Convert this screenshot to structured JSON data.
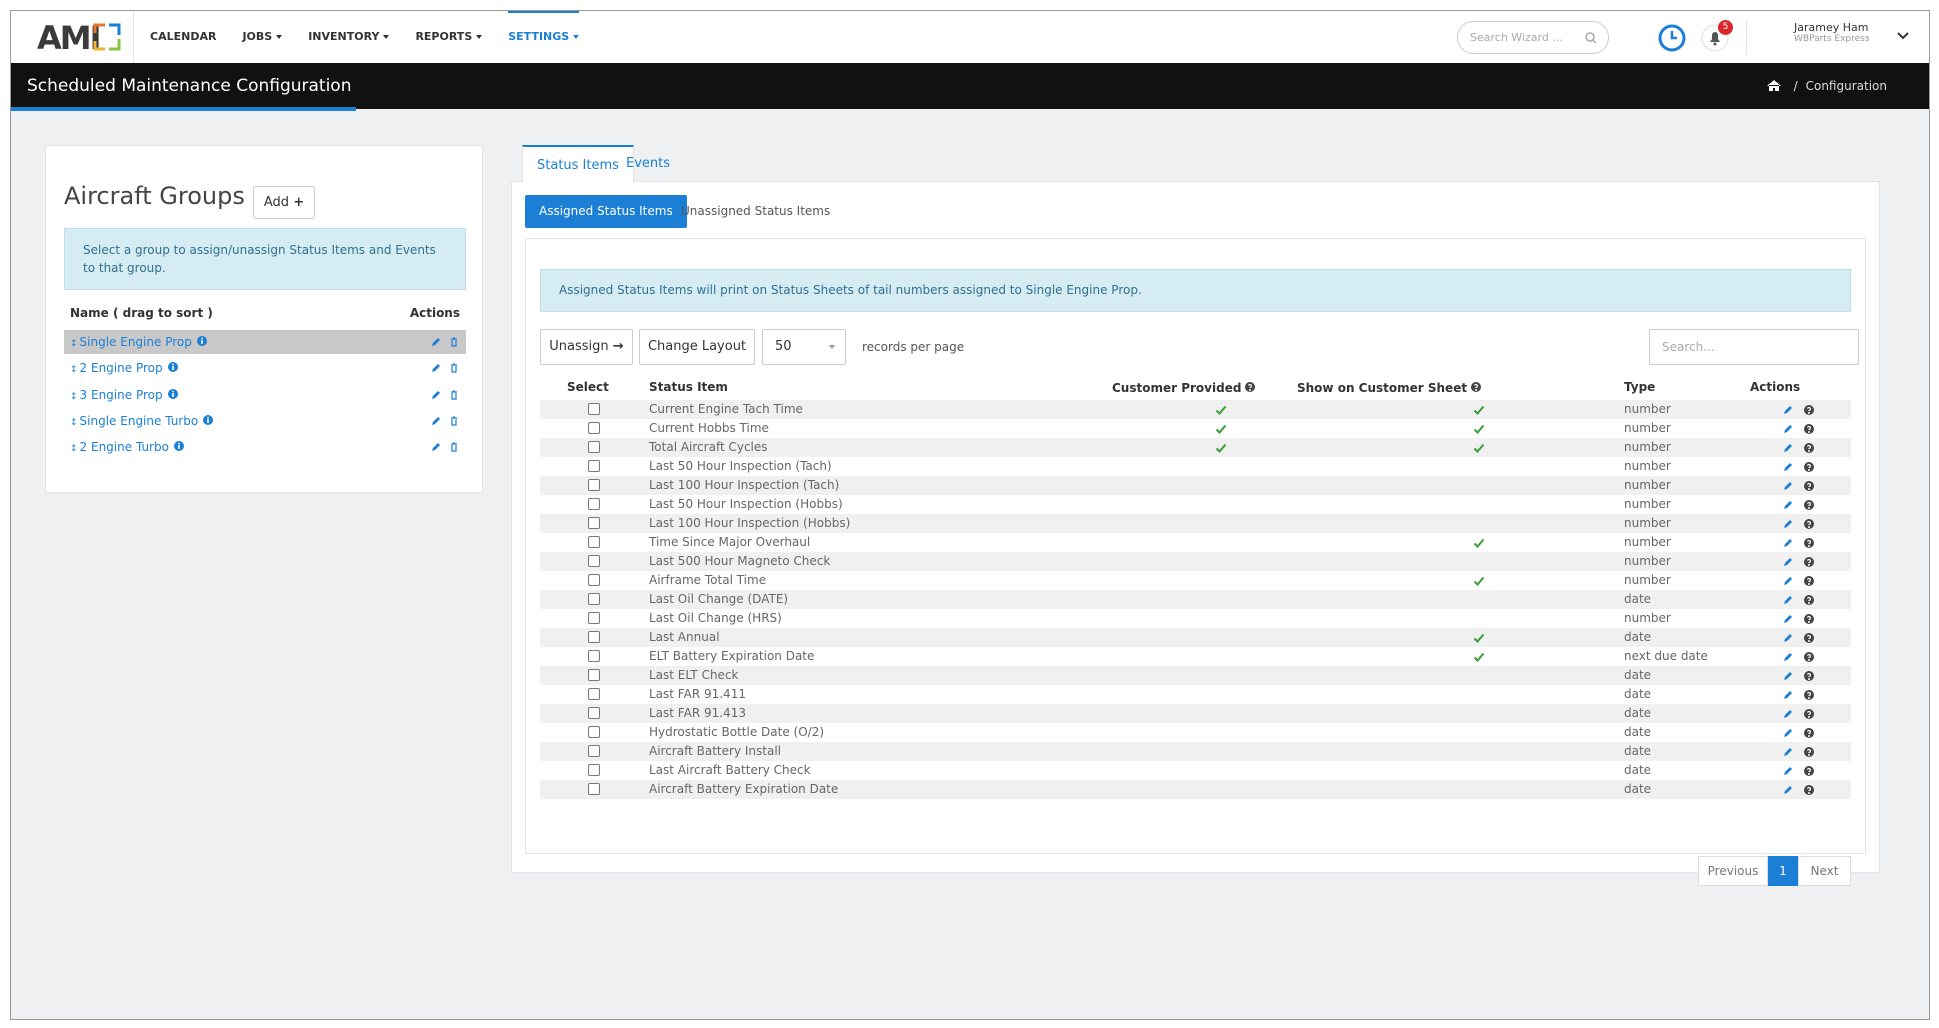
{
  "nav": {
    "logo": "AMI",
    "items": [
      "CALENDAR",
      "JOBS",
      "INVENTORY",
      "REPORTS",
      "SETTINGS"
    ],
    "search_placeholder": "Search Wizard ...",
    "notifications": 5,
    "user": {
      "name": "Jaramey Ham",
      "company": "WBParts Express"
    }
  },
  "header": {
    "title": "Scheduled Maintenance Configuration",
    "breadcrumb": "Configuration"
  },
  "groups_panel": {
    "title": "Aircraft Groups",
    "add_button": "Add",
    "info": "Select a group to assign/unassign Status Items and Events to that group.",
    "col_name": "Name ( drag to sort )",
    "col_actions": "Actions",
    "groups": [
      "Single Engine Prop",
      "2 Engine Prop",
      "3 Engine Prop",
      "Single Engine Turbo",
      "2 Engine Turbo"
    ]
  },
  "tabs": [
    "Status Items",
    "Events"
  ],
  "subtabs": [
    "Assigned Status Items",
    "Unassigned Status Items"
  ],
  "info": "Assigned Status Items will print on Status Sheets of tail numbers assigned to Single Engine Prop.",
  "buttons": {
    "unassign": "Unassign",
    "change_layout": "Change Layout"
  },
  "page_size": 50,
  "records_label": "records per page",
  "search_placeholder": "Search...",
  "table": {
    "columns": [
      "Select",
      "Status Item",
      "Customer Provided",
      "Show on Customer Sheet",
      "Type",
      "Actions"
    ],
    "rows": [
      {
        "item": "Current Engine Tach Time",
        "customer_provided": true,
        "show_on_sheet": true,
        "type": "number"
      },
      {
        "item": "Current Hobbs Time",
        "customer_provided": true,
        "show_on_sheet": true,
        "type": "number"
      },
      {
        "item": "Total Aircraft Cycles",
        "customer_provided": true,
        "show_on_sheet": true,
        "type": "number"
      },
      {
        "item": "Last 50 Hour Inspection (Tach)",
        "customer_provided": false,
        "show_on_sheet": false,
        "type": "number"
      },
      {
        "item": "Last 100 Hour Inspection (Tach)",
        "customer_provided": false,
        "show_on_sheet": false,
        "type": "number"
      },
      {
        "item": "Last 50 Hour Inspection (Hobbs)",
        "customer_provided": false,
        "show_on_sheet": false,
        "type": "number"
      },
      {
        "item": "Last 100 Hour Inspection (Hobbs)",
        "customer_provided": false,
        "show_on_sheet": false,
        "type": "number"
      },
      {
        "item": "Time Since Major Overhaul",
        "customer_provided": false,
        "show_on_sheet": true,
        "type": "number"
      },
      {
        "item": "Last 500 Hour Magneto Check",
        "customer_provided": false,
        "show_on_sheet": false,
        "type": "number"
      },
      {
        "item": "Airframe Total Time",
        "customer_provided": false,
        "show_on_sheet": true,
        "type": "number"
      },
      {
        "item": "Last Oil Change (DATE)",
        "customer_provided": false,
        "show_on_sheet": false,
        "type": "date"
      },
      {
        "item": "Last Oil Change (HRS)",
        "customer_provided": false,
        "show_on_sheet": false,
        "type": "number"
      },
      {
        "item": "Last Annual",
        "customer_provided": false,
        "show_on_sheet": true,
        "type": "date"
      },
      {
        "item": "ELT Battery Expiration Date",
        "customer_provided": false,
        "show_on_sheet": true,
        "type": "next due date"
      },
      {
        "item": "Last ELT Check",
        "customer_provided": false,
        "show_on_sheet": false,
        "type": "date"
      },
      {
        "item": "Last FAR 91.411",
        "customer_provided": false,
        "show_on_sheet": false,
        "type": "date"
      },
      {
        "item": "Last FAR 91.413",
        "customer_provided": false,
        "show_on_sheet": false,
        "type": "date"
      },
      {
        "item": "Hydrostatic Bottle Date (O/2)",
        "customer_provided": false,
        "show_on_sheet": false,
        "type": "date"
      },
      {
        "item": "Aircraft Battery Install",
        "customer_provided": false,
        "show_on_sheet": false,
        "type": "date"
      },
      {
        "item": "Last Aircraft Battery Check",
        "customer_provided": false,
        "show_on_sheet": false,
        "type": "date"
      },
      {
        "item": "Aircraft Battery Expiration Date",
        "customer_provided": false,
        "show_on_sheet": false,
        "type": "date"
      }
    ]
  },
  "pagination": {
    "previous": "Previous",
    "page": 1,
    "next": "Next"
  }
}
